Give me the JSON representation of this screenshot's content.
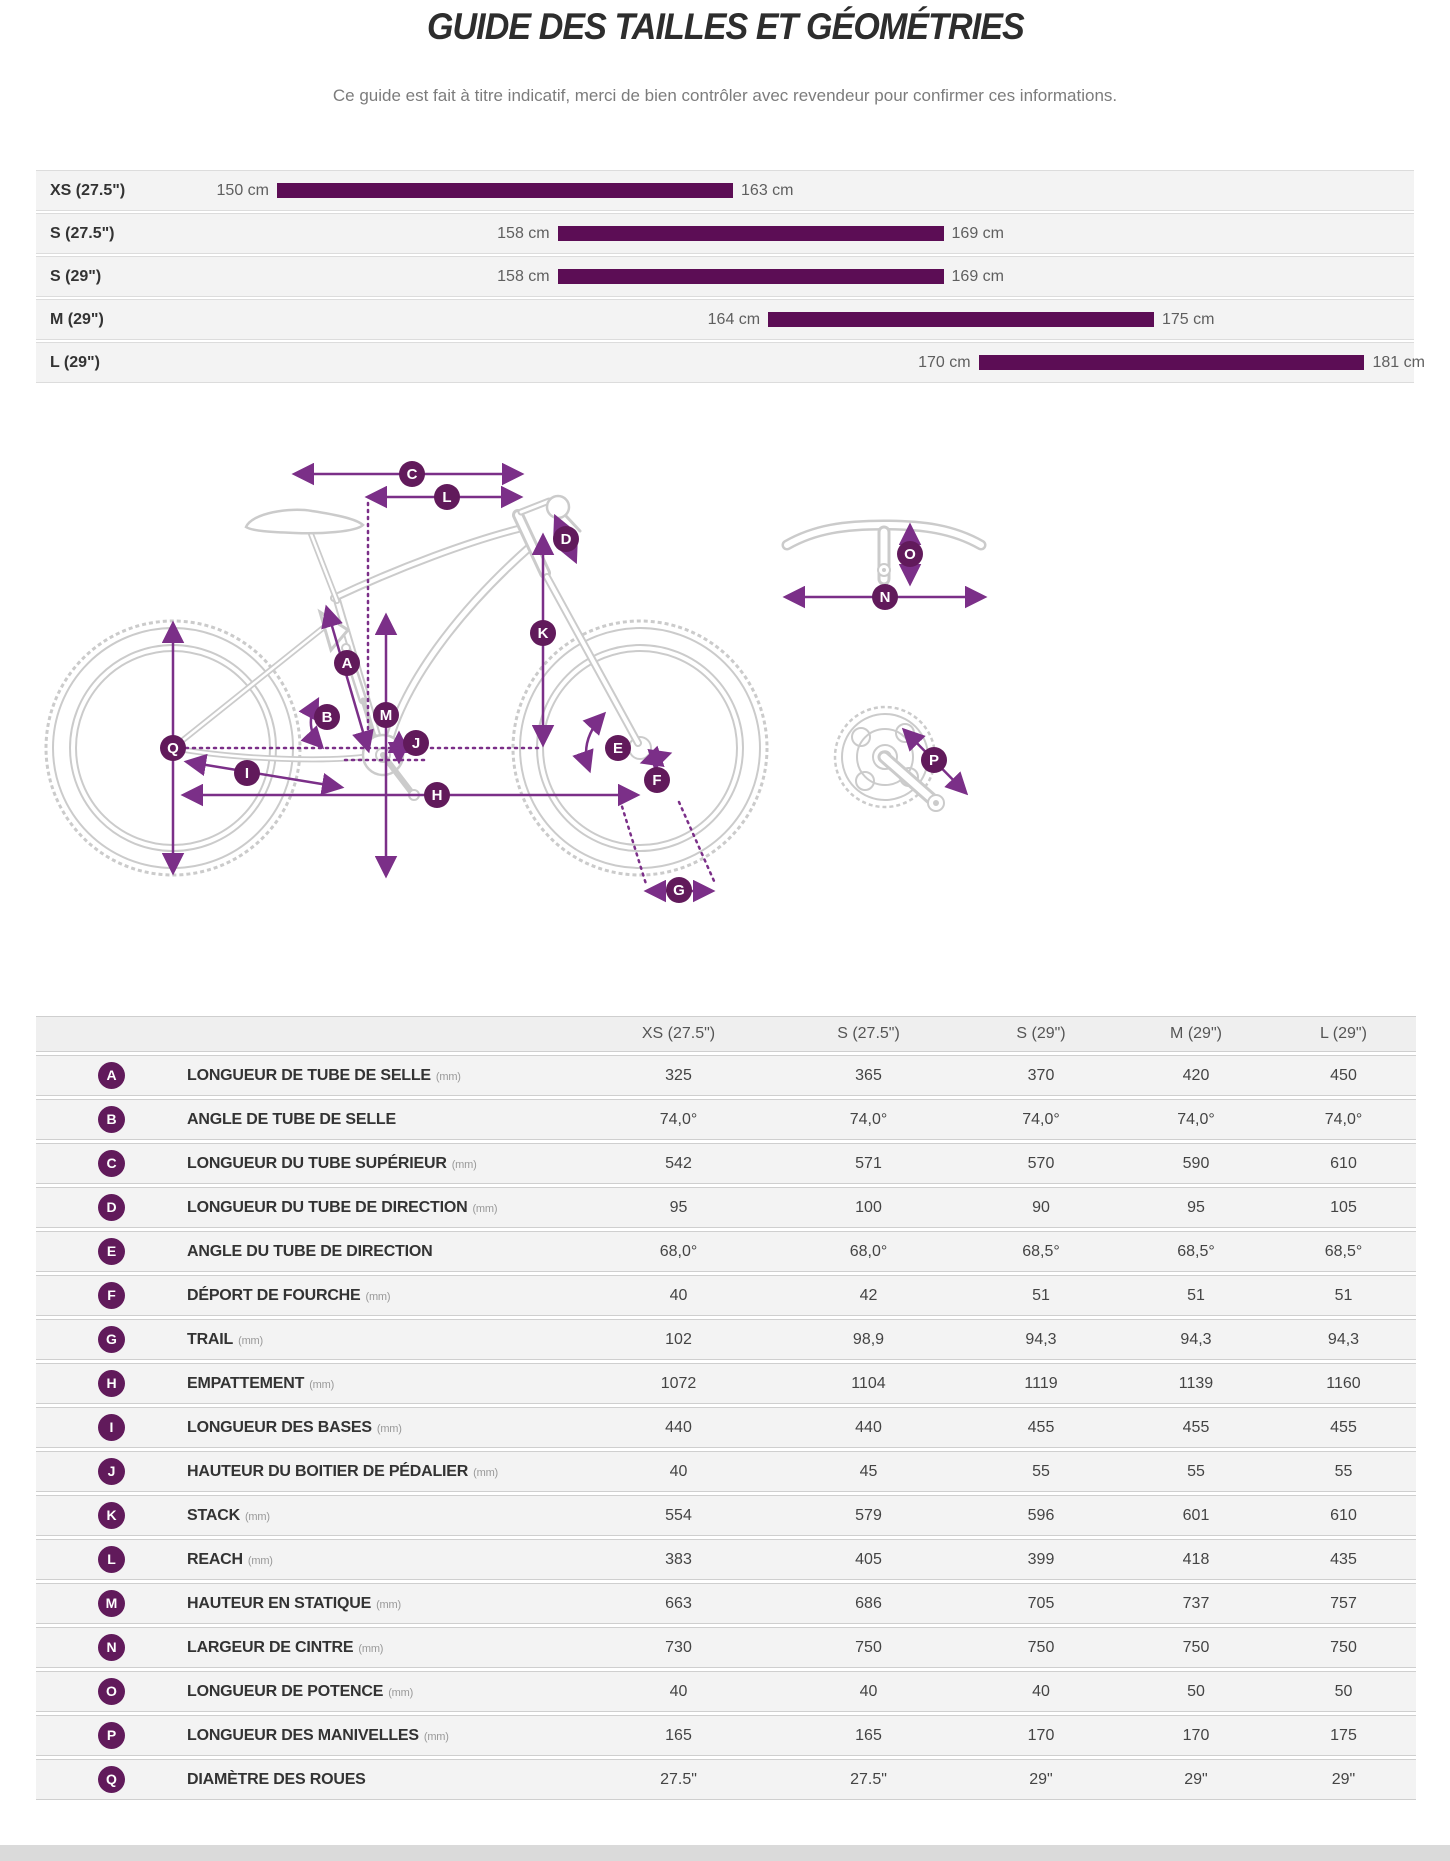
{
  "page": {
    "title": "GUIDE DES TAILLES ET GÉOMÉTRIES",
    "subtitle": "Ce guide est fait à titre indicatif, merci de bien contrôler avec revendeur pour confirmer ces informations."
  },
  "colors": {
    "bar": "#5c0d55",
    "badge": "#611a5b",
    "arrow": "#7b2f88",
    "row_bg": "#f3f3f3",
    "sketch": "#cbcbcb"
  },
  "chart_data": {
    "type": "bar",
    "title": "Rider height range per frame size",
    "unit": "cm",
    "xlim": [
      150,
      186
    ],
    "categories": [
      "XS (27.5\")",
      "S (27.5\")",
      "S (29\")",
      "M (29\")",
      "L (29\")"
    ],
    "rows": [
      {
        "size": "XS (27.5\")",
        "min": 150,
        "max": 163,
        "min_label": "150 cm",
        "max_label": "163 cm"
      },
      {
        "size": "S (27.5\")",
        "min": 158,
        "max": 169,
        "min_label": "158 cm",
        "max_label": "169 cm"
      },
      {
        "size": "S (29\")",
        "min": 158,
        "max": 169,
        "min_label": "158 cm",
        "max_label": "169 cm"
      },
      {
        "size": "M (29\")",
        "min": 164,
        "max": 175,
        "min_label": "164 cm",
        "max_label": "175 cm"
      },
      {
        "size": "L (29\")",
        "min": 170,
        "max": 181,
        "min_label": "170 cm",
        "max_label": "181 cm"
      }
    ]
  },
  "diagram": {
    "badges": [
      "A",
      "B",
      "C",
      "D",
      "E",
      "F",
      "G",
      "H",
      "I",
      "J",
      "K",
      "L",
      "M",
      "N",
      "O",
      "P",
      "Q"
    ]
  },
  "geometry_table": {
    "columns": [
      "XS (27.5\")",
      "S (27.5\")",
      "S (29\")",
      "M (29\")",
      "L (29\")"
    ],
    "rows": [
      {
        "key": "A",
        "label": "LONGUEUR DE TUBE DE SELLE",
        "unit": "(mm)",
        "values": [
          "325",
          "365",
          "370",
          "420",
          "450"
        ]
      },
      {
        "key": "B",
        "label": "ANGLE DE TUBE DE SELLE",
        "unit": "",
        "values": [
          "74,0°",
          "74,0°",
          "74,0°",
          "74,0°",
          "74,0°"
        ]
      },
      {
        "key": "C",
        "label": "LONGUEUR DU TUBE SUPÉRIEUR",
        "unit": "(mm)",
        "values": [
          "542",
          "571",
          "570",
          "590",
          "610"
        ]
      },
      {
        "key": "D",
        "label": "LONGUEUR DU TUBE DE DIRECTION",
        "unit": "(mm)",
        "values": [
          "95",
          "100",
          "90",
          "95",
          "105"
        ]
      },
      {
        "key": "E",
        "label": "ANGLE DU TUBE DE DIRECTION",
        "unit": "",
        "values": [
          "68,0°",
          "68,0°",
          "68,5°",
          "68,5°",
          "68,5°"
        ]
      },
      {
        "key": "F",
        "label": "DÉPORT DE FOURCHE",
        "unit": "(mm)",
        "values": [
          "40",
          "42",
          "51",
          "51",
          "51"
        ]
      },
      {
        "key": "G",
        "label": "TRAIL",
        "unit": "(mm)",
        "values": [
          "102",
          "98,9",
          "94,3",
          "94,3",
          "94,3"
        ]
      },
      {
        "key": "H",
        "label": "EMPATTEMENT",
        "unit": "(mm)",
        "values": [
          "1072",
          "1104",
          "1119",
          "1139",
          "1160"
        ]
      },
      {
        "key": "I",
        "label": "LONGUEUR DES BASES",
        "unit": "(mm)",
        "values": [
          "440",
          "440",
          "455",
          "455",
          "455"
        ]
      },
      {
        "key": "J",
        "label": "HAUTEUR DU BOITIER DE PÉDALIER",
        "unit": "(mm)",
        "values": [
          "40",
          "45",
          "55",
          "55",
          "55"
        ]
      },
      {
        "key": "K",
        "label": "STACK",
        "unit": "(mm)",
        "values": [
          "554",
          "579",
          "596",
          "601",
          "610"
        ]
      },
      {
        "key": "L",
        "label": "REACH",
        "unit": "(mm)",
        "values": [
          "383",
          "405",
          "399",
          "418",
          "435"
        ]
      },
      {
        "key": "M",
        "label": "HAUTEUR EN STATIQUE",
        "unit": "(mm)",
        "values": [
          "663",
          "686",
          "705",
          "737",
          "757"
        ]
      },
      {
        "key": "N",
        "label": "LARGEUR DE CINTRE",
        "unit": "(mm)",
        "values": [
          "730",
          "750",
          "750",
          "750",
          "750"
        ]
      },
      {
        "key": "O",
        "label": "LONGUEUR DE POTENCE",
        "unit": "(mm)",
        "values": [
          "40",
          "40",
          "40",
          "50",
          "50"
        ]
      },
      {
        "key": "P",
        "label": "LONGUEUR DES MANIVELLES",
        "unit": "(mm)",
        "values": [
          "165",
          "165",
          "170",
          "170",
          "175"
        ]
      },
      {
        "key": "Q",
        "label": "DIAMÈTRE DES ROUES",
        "unit": "",
        "values": [
          "27.5\"",
          "27.5\"",
          "29\"",
          "29\"",
          "29\""
        ]
      }
    ]
  }
}
